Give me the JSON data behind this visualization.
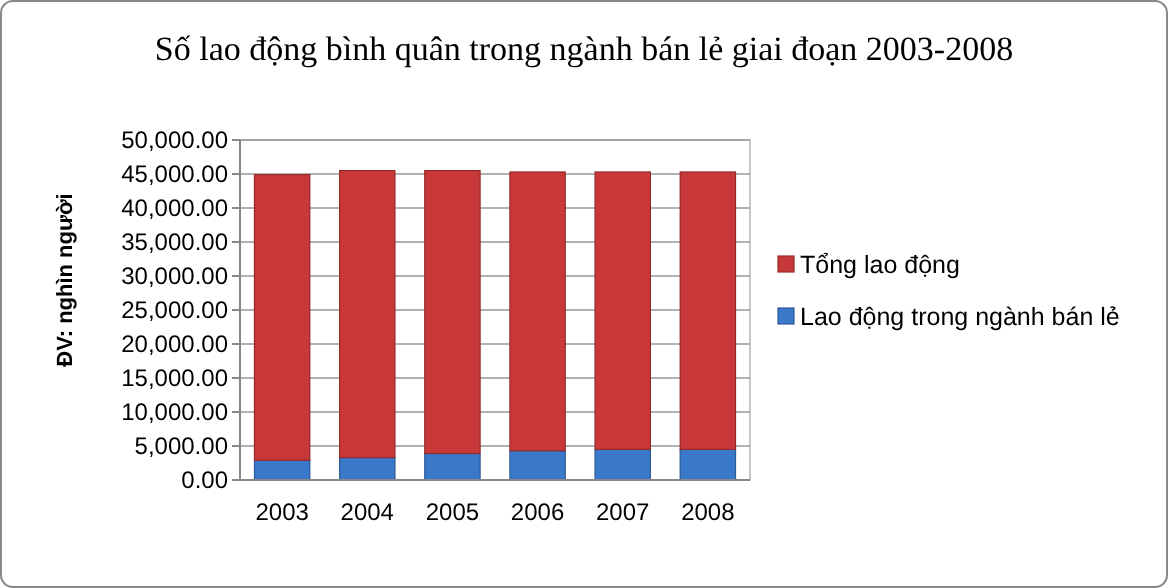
{
  "chart_data": {
    "type": "bar",
    "title": "Số lao động bình quân trong ngành bán lẻ giai đoạn 2003-2008",
    "ylabel": "ĐV: nghìn người",
    "categories": [
      "2003",
      "2004",
      "2005",
      "2006",
      "2007",
      "2008"
    ],
    "stacked": true,
    "series": [
      {
        "name": "Lao động trong ngành bán lẻ",
        "color": "#3a78c9",
        "values": [
          2900,
          3300,
          3900,
          4300,
          4500,
          4500
        ]
      },
      {
        "name": "Tổng lao động",
        "color": "#c83838",
        "values": [
          42000,
          42200,
          41600,
          41000,
          40800,
          40800
        ]
      }
    ],
    "ylim": [
      0,
      50000
    ],
    "yticks": [
      {
        "value": 0,
        "label": "0.00"
      },
      {
        "value": 5000,
        "label": "5,000.00"
      },
      {
        "value": 10000,
        "label": "10,000.00"
      },
      {
        "value": 15000,
        "label": "15,000.00"
      },
      {
        "value": 20000,
        "label": "20,000.00"
      },
      {
        "value": 25000,
        "label": "25,000.00"
      },
      {
        "value": 30000,
        "label": "30,000.00"
      },
      {
        "value": 35000,
        "label": "35,000.00"
      },
      {
        "value": 40000,
        "label": "40,000.00"
      },
      {
        "value": 45000,
        "label": "45,000.00"
      },
      {
        "value": 50000,
        "label": "50,000.00"
      }
    ],
    "grid": "y",
    "legend": "right"
  }
}
